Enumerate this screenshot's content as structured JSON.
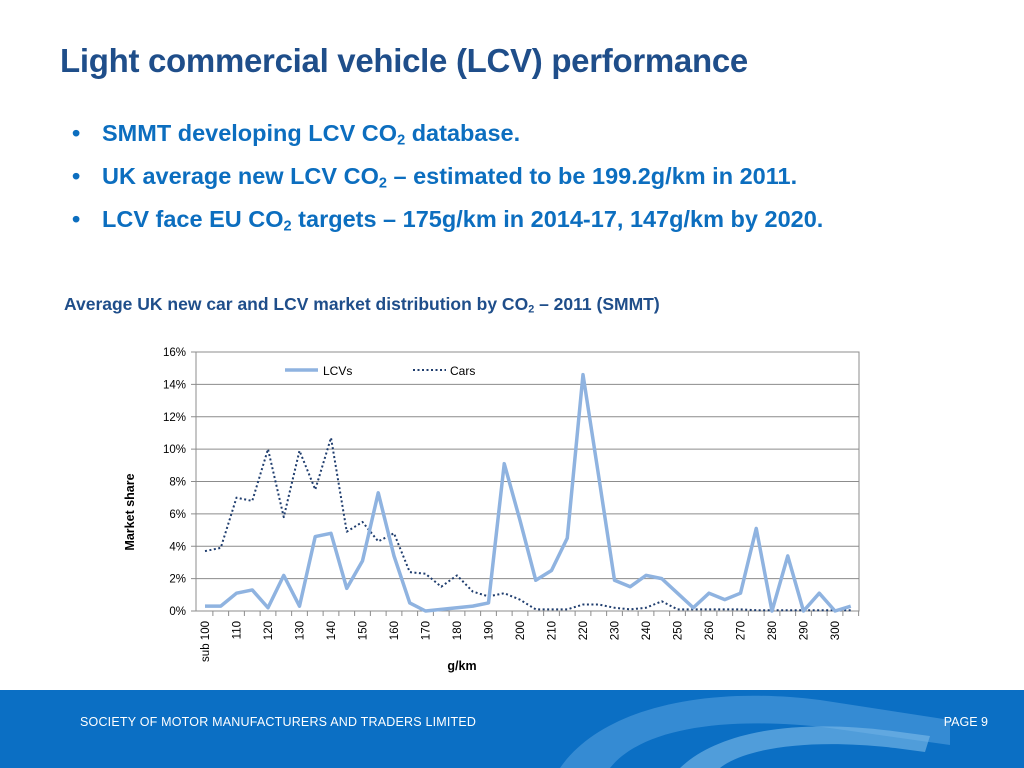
{
  "slide": {
    "title": "Light commercial vehicle (LCV) performance",
    "bullets": [
      {
        "before": "SMMT developing LCV CO",
        "sub": "2",
        "after": " database."
      },
      {
        "before": "UK average new LCV CO",
        "sub": "2",
        "after": " – estimated to be 199.2g/km in 2011."
      },
      {
        "before": "LCV face EU CO",
        "sub": "2",
        "after": " targets – 175g/km in 2014-17, 147g/km by 2020."
      }
    ],
    "bullet_glyph": "•",
    "chart_title": {
      "before": "Average UK new car and LCV market distribution by CO",
      "sub": "2",
      "after": " – 2011 (SMMT)"
    }
  },
  "footer": {
    "org": "SOCIETY OF MOTOR MANUFACTURERS AND TRADERS LIMITED",
    "page": "PAGE 9"
  },
  "colors": {
    "title": "#1f4e8a",
    "bullets": "#0c6ebf",
    "footer": "#0b6fc4",
    "lcv": "#8fb3e0",
    "cars": "#1f3d6e"
  },
  "chart_data": {
    "type": "line",
    "xlabel": "g/km",
    "ylabel": "Market share",
    "ylim": [
      0,
      16
    ],
    "y_ticks": [
      "0%",
      "2%",
      "4%",
      "6%",
      "8%",
      "10%",
      "12%",
      "14%",
      "16%"
    ],
    "x_tick_labels": [
      "sub 100",
      "110",
      "120",
      "130",
      "140",
      "150",
      "160",
      "170",
      "180",
      "190",
      "200",
      "210",
      "220",
      "230",
      "240",
      "250",
      "260",
      "270",
      "280",
      "290",
      "300"
    ],
    "x_points": [
      "sub 100",
      "105",
      "110",
      "115",
      "120",
      "125",
      "130",
      "135",
      "140",
      "145",
      "150",
      "155",
      "160",
      "165",
      "170",
      "175",
      "180",
      "185",
      "190",
      "195",
      "200",
      "205",
      "210",
      "215",
      "220",
      "225",
      "230",
      "235",
      "240",
      "245",
      "250",
      "255",
      "260",
      "265",
      "270",
      "275",
      "280",
      "285",
      "290",
      "295",
      "300",
      "305"
    ],
    "legend_position": "top",
    "grid": true,
    "series": [
      {
        "name": "LCVs",
        "style": "solid",
        "values": [
          0.3,
          0.3,
          1.1,
          1.3,
          0.2,
          2.2,
          0.3,
          4.6,
          4.8,
          1.4,
          3.1,
          7.3,
          3.4,
          0.5,
          0.0,
          0.1,
          0.2,
          0.3,
          0.5,
          9.1,
          5.6,
          1.9,
          2.5,
          4.5,
          14.6,
          8.3,
          1.9,
          1.5,
          2.2,
          2.0,
          1.1,
          0.2,
          1.1,
          0.7,
          1.1,
          5.1,
          0.0,
          3.4,
          0.0,
          1.1,
          0.0,
          0.3
        ]
      },
      {
        "name": "Cars",
        "style": "dotted",
        "values": [
          3.7,
          3.9,
          7.0,
          6.8,
          10.0,
          5.8,
          9.9,
          7.5,
          10.7,
          4.9,
          5.5,
          4.3,
          4.8,
          2.4,
          2.3,
          1.5,
          2.2,
          1.2,
          0.9,
          1.1,
          0.7,
          0.1,
          0.1,
          0.1,
          0.4,
          0.4,
          0.2,
          0.1,
          0.2,
          0.6,
          0.1,
          0.1,
          0.1,
          0.1,
          0.1,
          0.05,
          0.05,
          0.05,
          0.05,
          0.05,
          0.05,
          0.05
        ]
      }
    ]
  }
}
